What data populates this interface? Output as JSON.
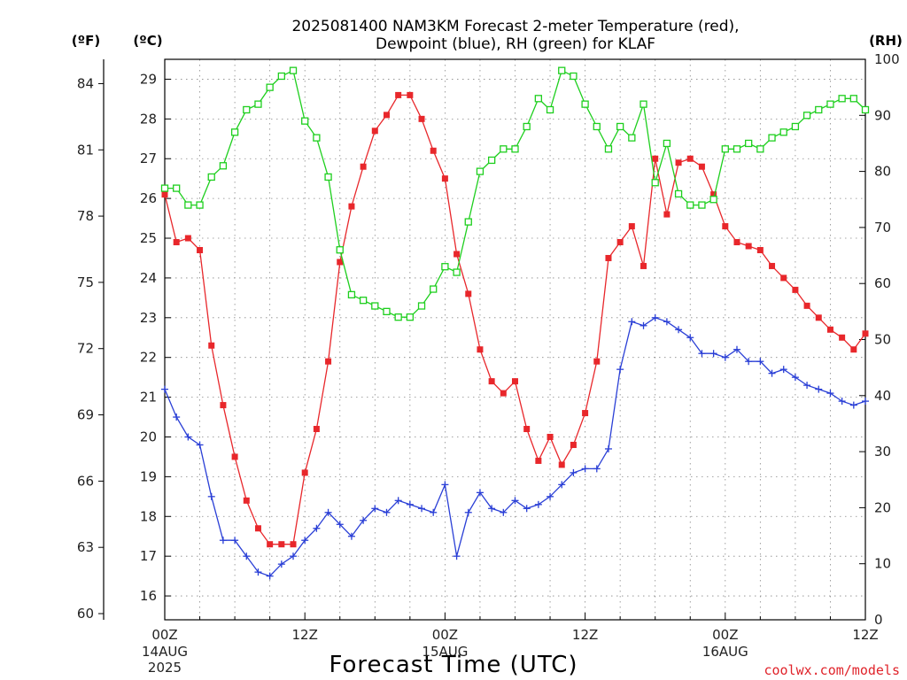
{
  "chart_data": {
    "type": "line",
    "title_lines": [
      "2025081400 NAM3KM Forecast 2-meter Temperature (red),",
      "Dewpoint (blue), RH (green) for KLAF"
    ],
    "units": {
      "fahrenheit": "(ºF)",
      "celsius": "(ºC)",
      "rh": "(RH)"
    },
    "xlabel": "Forecast Time (UTC)",
    "credit": "coolwx.com/models",
    "x_range_hours": [
      0,
      60
    ],
    "x_ticks": [
      {
        "hour": 0,
        "label": "00Z",
        "sub": [
          "14AUG",
          "2025"
        ]
      },
      {
        "hour": 12,
        "label": "12Z",
        "sub": []
      },
      {
        "hour": 24,
        "label": "00Z",
        "sub": [
          "15AUG"
        ]
      },
      {
        "hour": 36,
        "label": "12Z",
        "sub": []
      },
      {
        "hour": 48,
        "label": "00Z",
        "sub": [
          "16AUG"
        ]
      },
      {
        "hour": 60,
        "label": "12Z",
        "sub": []
      }
    ],
    "celsius_axis": {
      "min": 15.4,
      "max": 29.5,
      "ticks": [
        16,
        17,
        18,
        19,
        20,
        21,
        22,
        23,
        24,
        25,
        26,
        27,
        28,
        29
      ]
    },
    "fahrenheit_axis": {
      "ticks": [
        60,
        63,
        66,
        69,
        72,
        75,
        78,
        81,
        84
      ]
    },
    "rh_axis": {
      "min": 0,
      "max": 100,
      "ticks": [
        0,
        10,
        20,
        30,
        40,
        50,
        60,
        70,
        80,
        90,
        100
      ]
    },
    "x": [
      0,
      1,
      2,
      3,
      4,
      5,
      6,
      7,
      8,
      9,
      10,
      11,
      12,
      13,
      14,
      15,
      16,
      17,
      18,
      19,
      20,
      21,
      22,
      23,
      24,
      25,
      26,
      27,
      28,
      29,
      30,
      31,
      32,
      33,
      34,
      35,
      36,
      37,
      38,
      39,
      40,
      41,
      42,
      43,
      44,
      45,
      46,
      47,
      48,
      49,
      50,
      51,
      52,
      53,
      54,
      55,
      56,
      57,
      58,
      59,
      60
    ],
    "series": [
      {
        "key": "temperature",
        "color": "#e8272b",
        "marker": "square-filled",
        "axis": "celsius",
        "values": [
          26.1,
          24.9,
          25.0,
          24.7,
          22.3,
          20.8,
          19.5,
          18.4,
          17.7,
          17.3,
          17.3,
          17.3,
          19.1,
          20.2,
          21.9,
          24.4,
          25.8,
          26.8,
          27.7,
          28.1,
          28.6,
          28.6,
          28.0,
          27.2,
          26.5,
          24.6,
          23.6,
          22.2,
          21.4,
          21.1,
          21.4,
          20.2,
          19.4,
          20.0,
          19.3,
          19.8,
          20.6,
          21.9,
          24.5,
          24.9,
          25.3,
          24.3,
          27.0,
          25.6,
          26.9,
          27.0,
          26.8,
          26.1,
          25.3,
          24.9,
          24.8,
          24.7,
          24.3,
          24.0,
          23.7,
          23.3,
          23.0,
          22.7,
          22.5,
          22.2,
          22.6
        ]
      },
      {
        "key": "dewpoint",
        "color": "#2a3fd6",
        "marker": "plus",
        "axis": "celsius",
        "values": [
          21.2,
          20.5,
          20.0,
          19.8,
          18.5,
          17.4,
          17.4,
          17.0,
          16.6,
          16.5,
          16.8,
          17.0,
          17.4,
          17.7,
          18.1,
          17.8,
          17.5,
          17.9,
          18.2,
          18.1,
          18.4,
          18.3,
          18.2,
          18.1,
          18.8,
          17.0,
          18.1,
          18.6,
          18.2,
          18.1,
          18.4,
          18.2,
          18.3,
          18.5,
          18.8,
          19.1,
          19.2,
          19.2,
          19.7,
          21.7,
          22.9,
          22.8,
          23.0,
          22.9,
          22.7,
          22.5,
          22.1,
          22.1,
          22.0,
          22.2,
          21.9,
          21.9,
          21.6,
          21.7,
          21.5,
          21.3,
          21.2,
          21.1,
          20.9,
          20.8,
          20.9
        ]
      },
      {
        "key": "rh",
        "color": "#1ecf1e",
        "marker": "square-open",
        "axis": "rh",
        "values": [
          77,
          77,
          74,
          74,
          79,
          81,
          87,
          91,
          92,
          95,
          97,
          98,
          89,
          86,
          79,
          66,
          58,
          57,
          56,
          55,
          54,
          54,
          56,
          59,
          63,
          62,
          71,
          80,
          82,
          84,
          84,
          88,
          93,
          91,
          98,
          97,
          92,
          88,
          84,
          88,
          86,
          92,
          78,
          85,
          76,
          74,
          74,
          75,
          84,
          84,
          85,
          84,
          86,
          87,
          88,
          90,
          91,
          92,
          93,
          93,
          91
        ]
      }
    ]
  }
}
